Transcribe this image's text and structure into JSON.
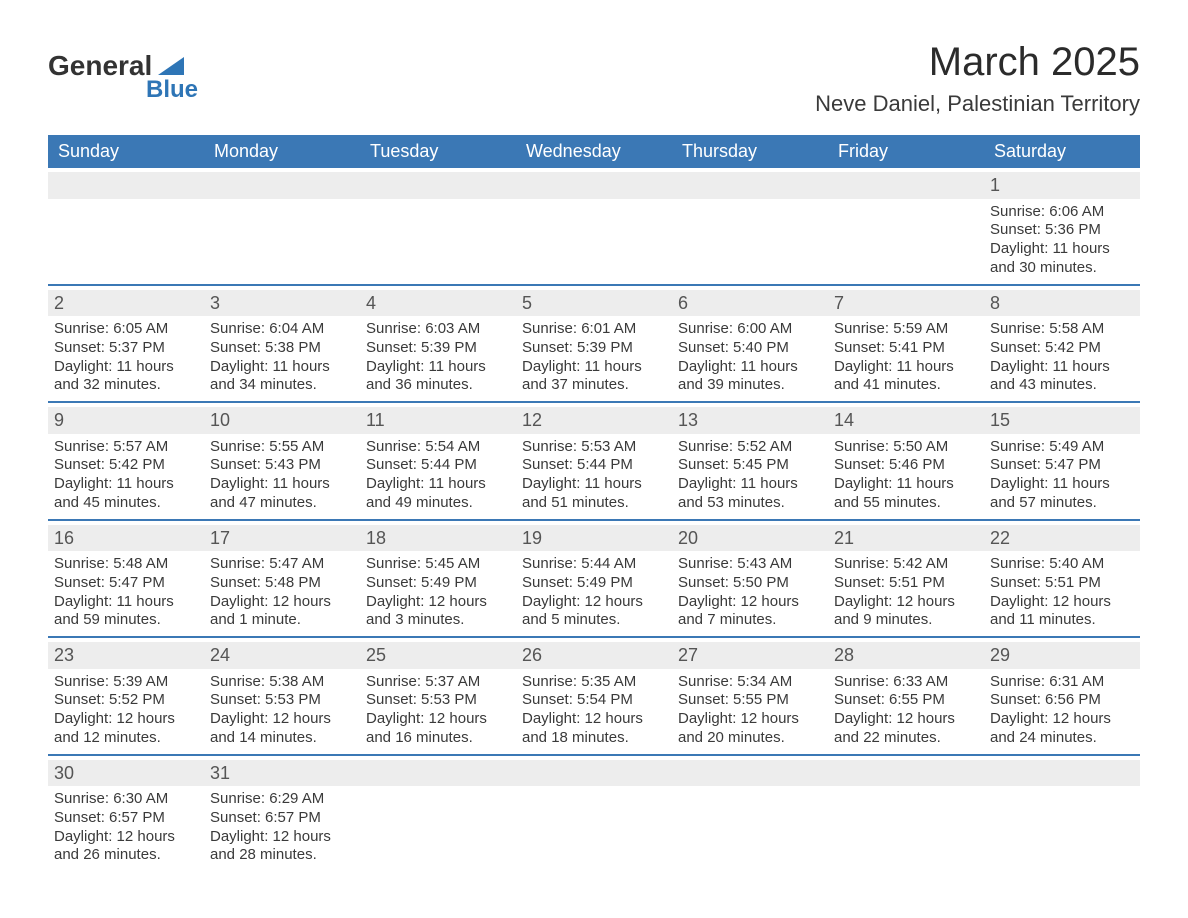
{
  "logo": {
    "main": "General",
    "sub": "Blue"
  },
  "title": "March 2025",
  "location": "Neve Daniel, Palestinian Territory",
  "colors": {
    "header_bg": "#3b78b5",
    "header_text": "#ffffff",
    "daynum_bg": "#ededed",
    "row_border": "#3b78b5",
    "body_text": "#3a3a3a",
    "logo_accent": "#2e75b6"
  },
  "days_of_week": [
    "Sunday",
    "Monday",
    "Tuesday",
    "Wednesday",
    "Thursday",
    "Friday",
    "Saturday"
  ],
  "weeks": [
    [
      {
        "empty": true
      },
      {
        "empty": true
      },
      {
        "empty": true
      },
      {
        "empty": true
      },
      {
        "empty": true
      },
      {
        "empty": true
      },
      {
        "n": "1",
        "sunrise": "Sunrise: 6:06 AM",
        "sunset": "Sunset: 5:36 PM",
        "dl1": "Daylight: 11 hours",
        "dl2": "and 30 minutes."
      }
    ],
    [
      {
        "n": "2",
        "sunrise": "Sunrise: 6:05 AM",
        "sunset": "Sunset: 5:37 PM",
        "dl1": "Daylight: 11 hours",
        "dl2": "and 32 minutes."
      },
      {
        "n": "3",
        "sunrise": "Sunrise: 6:04 AM",
        "sunset": "Sunset: 5:38 PM",
        "dl1": "Daylight: 11 hours",
        "dl2": "and 34 minutes."
      },
      {
        "n": "4",
        "sunrise": "Sunrise: 6:03 AM",
        "sunset": "Sunset: 5:39 PM",
        "dl1": "Daylight: 11 hours",
        "dl2": "and 36 minutes."
      },
      {
        "n": "5",
        "sunrise": "Sunrise: 6:01 AM",
        "sunset": "Sunset: 5:39 PM",
        "dl1": "Daylight: 11 hours",
        "dl2": "and 37 minutes."
      },
      {
        "n": "6",
        "sunrise": "Sunrise: 6:00 AM",
        "sunset": "Sunset: 5:40 PM",
        "dl1": "Daylight: 11 hours",
        "dl2": "and 39 minutes."
      },
      {
        "n": "7",
        "sunrise": "Sunrise: 5:59 AM",
        "sunset": "Sunset: 5:41 PM",
        "dl1": "Daylight: 11 hours",
        "dl2": "and 41 minutes."
      },
      {
        "n": "8",
        "sunrise": "Sunrise: 5:58 AM",
        "sunset": "Sunset: 5:42 PM",
        "dl1": "Daylight: 11 hours",
        "dl2": "and 43 minutes."
      }
    ],
    [
      {
        "n": "9",
        "sunrise": "Sunrise: 5:57 AM",
        "sunset": "Sunset: 5:42 PM",
        "dl1": "Daylight: 11 hours",
        "dl2": "and 45 minutes."
      },
      {
        "n": "10",
        "sunrise": "Sunrise: 5:55 AM",
        "sunset": "Sunset: 5:43 PM",
        "dl1": "Daylight: 11 hours",
        "dl2": "and 47 minutes."
      },
      {
        "n": "11",
        "sunrise": "Sunrise: 5:54 AM",
        "sunset": "Sunset: 5:44 PM",
        "dl1": "Daylight: 11 hours",
        "dl2": "and 49 minutes."
      },
      {
        "n": "12",
        "sunrise": "Sunrise: 5:53 AM",
        "sunset": "Sunset: 5:44 PM",
        "dl1": "Daylight: 11 hours",
        "dl2": "and 51 minutes."
      },
      {
        "n": "13",
        "sunrise": "Sunrise: 5:52 AM",
        "sunset": "Sunset: 5:45 PM",
        "dl1": "Daylight: 11 hours",
        "dl2": "and 53 minutes."
      },
      {
        "n": "14",
        "sunrise": "Sunrise: 5:50 AM",
        "sunset": "Sunset: 5:46 PM",
        "dl1": "Daylight: 11 hours",
        "dl2": "and 55 minutes."
      },
      {
        "n": "15",
        "sunrise": "Sunrise: 5:49 AM",
        "sunset": "Sunset: 5:47 PM",
        "dl1": "Daylight: 11 hours",
        "dl2": "and 57 minutes."
      }
    ],
    [
      {
        "n": "16",
        "sunrise": "Sunrise: 5:48 AM",
        "sunset": "Sunset: 5:47 PM",
        "dl1": "Daylight: 11 hours",
        "dl2": "and 59 minutes."
      },
      {
        "n": "17",
        "sunrise": "Sunrise: 5:47 AM",
        "sunset": "Sunset: 5:48 PM",
        "dl1": "Daylight: 12 hours",
        "dl2": "and 1 minute."
      },
      {
        "n": "18",
        "sunrise": "Sunrise: 5:45 AM",
        "sunset": "Sunset: 5:49 PM",
        "dl1": "Daylight: 12 hours",
        "dl2": "and 3 minutes."
      },
      {
        "n": "19",
        "sunrise": "Sunrise: 5:44 AM",
        "sunset": "Sunset: 5:49 PM",
        "dl1": "Daylight: 12 hours",
        "dl2": "and 5 minutes."
      },
      {
        "n": "20",
        "sunrise": "Sunrise: 5:43 AM",
        "sunset": "Sunset: 5:50 PM",
        "dl1": "Daylight: 12 hours",
        "dl2": "and 7 minutes."
      },
      {
        "n": "21",
        "sunrise": "Sunrise: 5:42 AM",
        "sunset": "Sunset: 5:51 PM",
        "dl1": "Daylight: 12 hours",
        "dl2": "and 9 minutes."
      },
      {
        "n": "22",
        "sunrise": "Sunrise: 5:40 AM",
        "sunset": "Sunset: 5:51 PM",
        "dl1": "Daylight: 12 hours",
        "dl2": "and 11 minutes."
      }
    ],
    [
      {
        "n": "23",
        "sunrise": "Sunrise: 5:39 AM",
        "sunset": "Sunset: 5:52 PM",
        "dl1": "Daylight: 12 hours",
        "dl2": "and 12 minutes."
      },
      {
        "n": "24",
        "sunrise": "Sunrise: 5:38 AM",
        "sunset": "Sunset: 5:53 PM",
        "dl1": "Daylight: 12 hours",
        "dl2": "and 14 minutes."
      },
      {
        "n": "25",
        "sunrise": "Sunrise: 5:37 AM",
        "sunset": "Sunset: 5:53 PM",
        "dl1": "Daylight: 12 hours",
        "dl2": "and 16 minutes."
      },
      {
        "n": "26",
        "sunrise": "Sunrise: 5:35 AM",
        "sunset": "Sunset: 5:54 PM",
        "dl1": "Daylight: 12 hours",
        "dl2": "and 18 minutes."
      },
      {
        "n": "27",
        "sunrise": "Sunrise: 5:34 AM",
        "sunset": "Sunset: 5:55 PM",
        "dl1": "Daylight: 12 hours",
        "dl2": "and 20 minutes."
      },
      {
        "n": "28",
        "sunrise": "Sunrise: 6:33 AM",
        "sunset": "Sunset: 6:55 PM",
        "dl1": "Daylight: 12 hours",
        "dl2": "and 22 minutes."
      },
      {
        "n": "29",
        "sunrise": "Sunrise: 6:31 AM",
        "sunset": "Sunset: 6:56 PM",
        "dl1": "Daylight: 12 hours",
        "dl2": "and 24 minutes."
      }
    ],
    [
      {
        "n": "30",
        "sunrise": "Sunrise: 6:30 AM",
        "sunset": "Sunset: 6:57 PM",
        "dl1": "Daylight: 12 hours",
        "dl2": "and 26 minutes."
      },
      {
        "n": "31",
        "sunrise": "Sunrise: 6:29 AM",
        "sunset": "Sunset: 6:57 PM",
        "dl1": "Daylight: 12 hours",
        "dl2": "and 28 minutes."
      },
      {
        "empty": true
      },
      {
        "empty": true
      },
      {
        "empty": true
      },
      {
        "empty": true
      },
      {
        "empty": true
      }
    ]
  ]
}
